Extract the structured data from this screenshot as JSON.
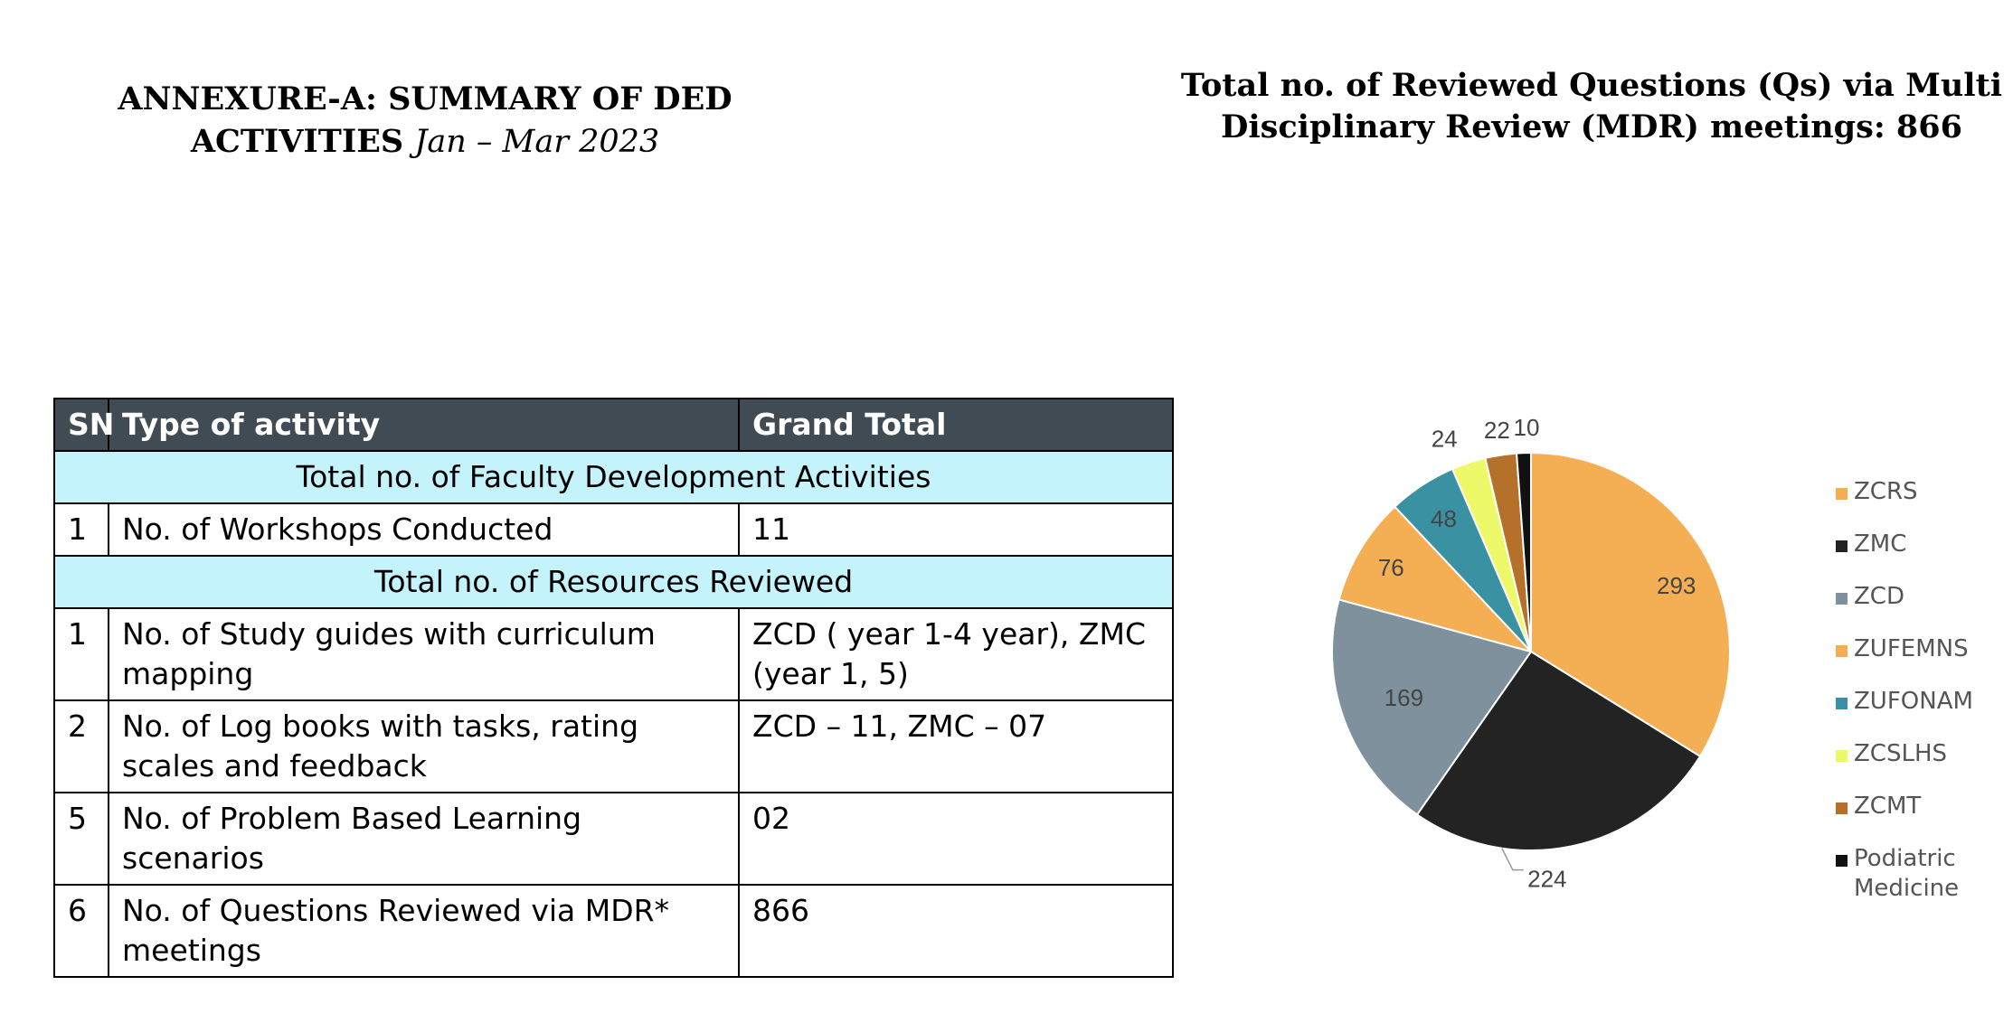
{
  "header": {
    "title_bold": "ANNEXURE-A: SUMMARY OF DED ACTIVITIES",
    "title_italic": "Jan – Mar 2023"
  },
  "chart_title": "Total no. of Reviewed Questions (Qs) via Multi Disciplinary Review (MDR) meetings: 866",
  "table": {
    "columns": [
      "SN",
      "Type of activity",
      "Grand Total"
    ],
    "section1": "Total no. of Faculty Development Activities",
    "row1": {
      "sn": "1",
      "activity": "No. of Workshops Conducted",
      "total": "11"
    },
    "section2": "Total no. of Resources Reviewed",
    "rows": [
      {
        "sn": "1",
        "activity": "No. of Study guides with curriculum mapping",
        "total": "ZCD ( year 1-4 year), ZMC (year 1, 5)"
      },
      {
        "sn": "2",
        "activity": "No. of Log books with tasks, rating scales and feedback",
        "total": "ZCD – 11, ZMC – 07"
      },
      {
        "sn": "5",
        "activity": "No. of Problem Based Learning scenarios",
        "total": "02"
      },
      {
        "sn": "6",
        "activity": "No. of Questions Reviewed via MDR* meetings",
        "total": "866"
      }
    ]
  },
  "chart_data": {
    "type": "pie",
    "title": "Total no. of Reviewed Questions (Qs) via Multi Disciplinary Review (MDR) meetings: 866",
    "categories": [
      "ZCRS",
      "ZMC",
      "ZCD",
      "ZUFEMNS",
      "ZUFONAM",
      "ZCSLHS",
      "ZCMT",
      "Podiatric Medicine"
    ],
    "values": [
      293,
      224,
      169,
      76,
      48,
      24,
      22,
      10
    ],
    "colors": [
      "#f4af55",
      "#232323",
      "#7f919d",
      "#f4af55",
      "#3a91a2",
      "#eef96a",
      "#b5702a",
      "#111111"
    ],
    "labels": [
      "293",
      "224",
      "169",
      "76",
      "48",
      "24",
      "22",
      "10"
    ],
    "legend_position": "right"
  }
}
